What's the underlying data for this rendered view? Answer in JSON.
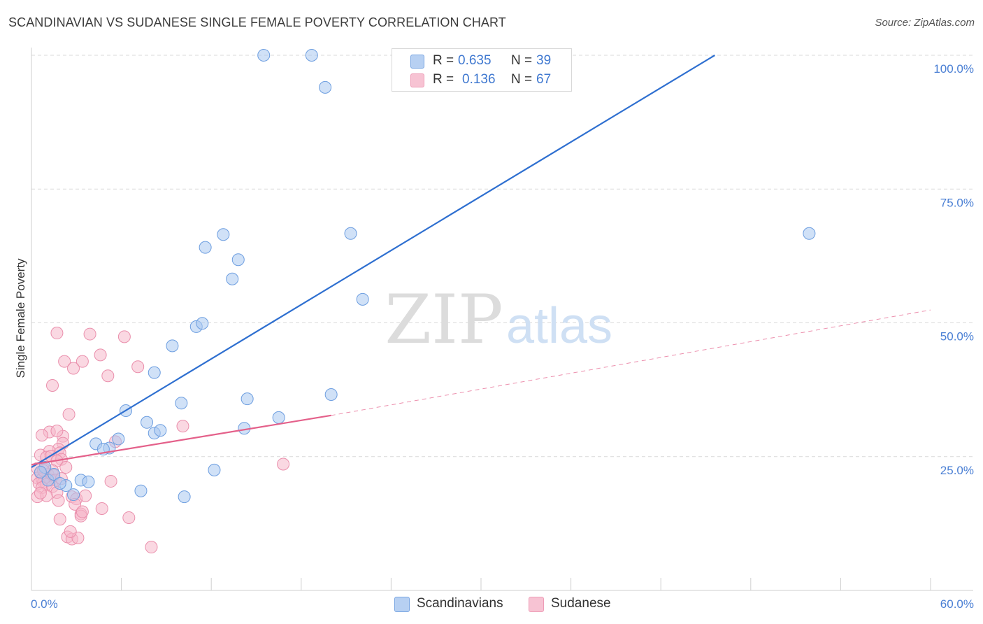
{
  "header": {
    "title": "SCANDINAVIAN VS SUDANESE SINGLE FEMALE POVERTY CORRELATION CHART",
    "source": "Source: ZipAtlas.com"
  },
  "watermark": {
    "zip": "ZIP",
    "atlas": "atlas"
  },
  "legend": {
    "rows": [
      {
        "r_label": "R =",
        "r_value": "0.635",
        "n_label": "N =",
        "n_value": "39"
      },
      {
        "r_label": "R =",
        "r_value": "0.136",
        "n_label": "N =",
        "n_value": "67"
      }
    ]
  },
  "bottom_legend": [
    "Scandinavians",
    "Sudanese"
  ],
  "colors": {
    "blue_fill": "#a9c8f0",
    "blue_stroke": "#6d9ee0",
    "blue_line": "#2e6fd0",
    "pink_fill": "#f5b8cb",
    "pink_stroke": "#ea8fac",
    "pink_line": "#e4608a",
    "grid": "#d9d9d9",
    "value_text": "#4a7fd4"
  },
  "chart_data": {
    "type": "scatter",
    "title": "SCANDINAVIAN VS SUDANESE SINGLE FEMALE POVERTY CORRELATION CHART",
    "xlabel": "",
    "ylabel": "Single Female Poverty",
    "xlim": [
      0,
      60
    ],
    "ylim": [
      0,
      100
    ],
    "x_tick_labels": [
      "0.0%",
      "60.0%"
    ],
    "y_ticks": [
      25,
      50,
      75,
      100
    ],
    "y_tick_labels": [
      "25.0%",
      "50.0%",
      "75.0%",
      "100.0%"
    ],
    "legend_position": "top-center",
    "series": [
      {
        "name": "Scandinavians",
        "r": 0.635,
        "n": 39,
        "trend": {
          "x": [
            0,
            45.6
          ],
          "y": [
            23.0,
            100
          ],
          "style": "solid"
        },
        "points": [
          [
            15.5,
            100
          ],
          [
            18.7,
            100
          ],
          [
            19.6,
            94
          ],
          [
            12.8,
            66.5
          ],
          [
            11.6,
            64.1
          ],
          [
            21.3,
            66.7
          ],
          [
            51.9,
            66.7
          ],
          [
            13.8,
            61.8
          ],
          [
            13.4,
            58.2
          ],
          [
            22.1,
            54.4
          ],
          [
            11.0,
            49.3
          ],
          [
            11.4,
            49.9
          ],
          [
            9.4,
            45.7
          ],
          [
            8.2,
            40.7
          ],
          [
            6.3,
            33.6
          ],
          [
            10.0,
            35.0
          ],
          [
            14.4,
            35.8
          ],
          [
            20.0,
            36.6
          ],
          [
            16.5,
            32.3
          ],
          [
            7.7,
            31.4
          ],
          [
            8.2,
            29.4
          ],
          [
            8.6,
            29.9
          ],
          [
            14.2,
            30.3
          ],
          [
            5.8,
            28.3
          ],
          [
            4.3,
            27.4
          ],
          [
            5.2,
            26.6
          ],
          [
            4.8,
            26.4
          ],
          [
            12.2,
            22.5
          ],
          [
            1.1,
            20.6
          ],
          [
            2.3,
            19.6
          ],
          [
            3.3,
            20.6
          ],
          [
            3.8,
            20.3
          ],
          [
            7.3,
            18.6
          ],
          [
            10.2,
            17.5
          ],
          [
            2.8,
            17.9
          ],
          [
            0.9,
            23.0
          ],
          [
            1.5,
            21.7
          ],
          [
            0.6,
            22.1
          ],
          [
            1.9,
            20.0
          ]
        ]
      },
      {
        "name": "Sudanese",
        "r": 0.136,
        "n": 67,
        "trend": {
          "x": [
            0,
            20.0
          ],
          "y": [
            23.5,
            32.7
          ],
          "style": "solid"
        },
        "trend_extended": {
          "x": [
            20.0,
            60.0
          ],
          "y": [
            32.7,
            52.4
          ],
          "style": "dashed"
        },
        "points": [
          [
            1.7,
            48.1
          ],
          [
            3.9,
            47.9
          ],
          [
            6.2,
            47.4
          ],
          [
            4.6,
            44.0
          ],
          [
            2.2,
            42.8
          ],
          [
            3.4,
            42.8
          ],
          [
            7.1,
            41.8
          ],
          [
            2.8,
            41.5
          ],
          [
            5.1,
            40.1
          ],
          [
            1.4,
            38.3
          ],
          [
            2.5,
            32.9
          ],
          [
            1.2,
            29.6
          ],
          [
            0.7,
            29.0
          ],
          [
            2.1,
            28.8
          ],
          [
            1.7,
            29.8
          ],
          [
            10.1,
            30.7
          ],
          [
            5.6,
            27.8
          ],
          [
            2.1,
            27.5
          ],
          [
            1.8,
            26.4
          ],
          [
            1.2,
            26.0
          ],
          [
            1.9,
            25.7
          ],
          [
            0.6,
            25.3
          ],
          [
            1.0,
            24.9
          ],
          [
            1.3,
            25.1
          ],
          [
            2.0,
            24.5
          ],
          [
            1.7,
            24.2
          ],
          [
            16.8,
            23.6
          ],
          [
            2.3,
            23.0
          ],
          [
            0.4,
            22.8
          ],
          [
            0.9,
            22.6
          ],
          [
            1.4,
            22.4
          ],
          [
            0.6,
            21.9
          ],
          [
            1.1,
            21.7
          ],
          [
            1.5,
            21.5
          ],
          [
            0.9,
            21.2
          ],
          [
            0.4,
            21.0
          ],
          [
            0.7,
            20.8
          ],
          [
            1.3,
            20.6
          ],
          [
            1.6,
            20.6
          ],
          [
            2.0,
            20.9
          ],
          [
            5.3,
            20.4
          ],
          [
            0.8,
            20.2
          ],
          [
            0.5,
            20.0
          ],
          [
            1.0,
            19.8
          ],
          [
            0.7,
            19.2
          ],
          [
            1.4,
            19.4
          ],
          [
            1.7,
            18.3
          ],
          [
            0.4,
            17.5
          ],
          [
            1.0,
            17.7
          ],
          [
            2.7,
            17.5
          ],
          [
            0.6,
            18.2
          ],
          [
            3.0,
            17.1
          ],
          [
            3.6,
            17.7
          ],
          [
            1.8,
            16.8
          ],
          [
            2.9,
            16.1
          ],
          [
            4.7,
            15.3
          ],
          [
            6.5,
            13.6
          ],
          [
            3.3,
            14.3
          ],
          [
            1.9,
            13.3
          ],
          [
            3.3,
            13.9
          ],
          [
            2.4,
            10.0
          ],
          [
            2.7,
            9.6
          ],
          [
            3.1,
            9.8
          ],
          [
            2.6,
            11.0
          ],
          [
            8.0,
            8.1
          ],
          [
            3.4,
            14.7
          ],
          [
            0.8,
            22.4
          ]
        ]
      }
    ]
  }
}
